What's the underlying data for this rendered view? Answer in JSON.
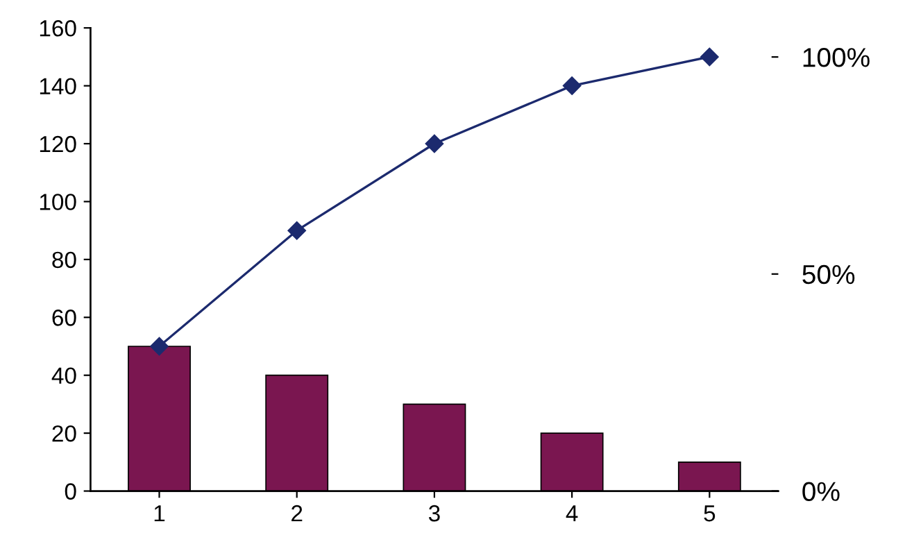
{
  "chart_data": {
    "type": "bar",
    "categories": [
      "1",
      "2",
      "3",
      "4",
      "5"
    ],
    "series": [
      {
        "color": "#7a1650",
        "values": [
          50,
          40,
          30,
          20,
          10
        ]
      },
      {
        "type": "line",
        "color": "#1c2a6e",
        "values": [
          50,
          90,
          120,
          140,
          150
        ],
        "marker": "diamond"
      }
    ],
    "ylim": [
      0,
      160
    ],
    "yticks": [
      0,
      20,
      40,
      60,
      80,
      100,
      120,
      140,
      160
    ],
    "y2lim": [
      0,
      106.7
    ],
    "y2ticks": [
      {
        "value": 0,
        "label": "0%"
      },
      {
        "value": 50,
        "label": "50%"
      },
      {
        "value": 100,
        "label": "100%"
      }
    ],
    "grid": false,
    "legend": false
  }
}
